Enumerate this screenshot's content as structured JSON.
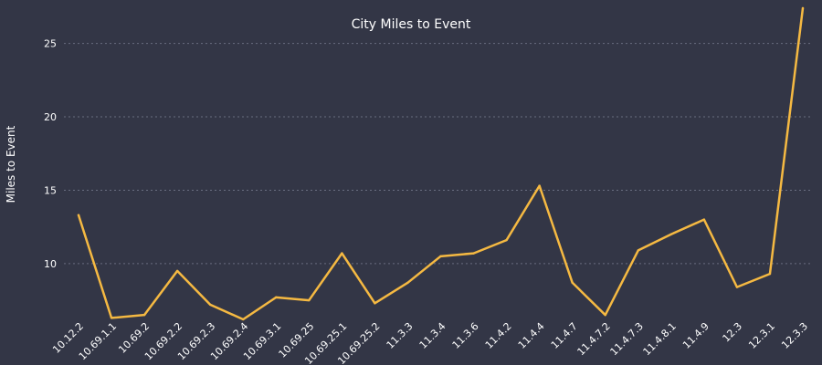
{
  "chart_data": {
    "type": "line",
    "title": "City Miles to Event",
    "xlabel": "",
    "ylabel": "Miles to Event",
    "categories": [
      "10.12.2",
      "10.69.1.1",
      "10.69.2",
      "10.69.2.2",
      "10.69.2.3",
      "10.69.2.4",
      "10.69.3.1",
      "10.69.25",
      "10.69.25.1",
      "10.69.25.2",
      "11.3.3",
      "11.3.4",
      "11.3.6",
      "11.4.2",
      "11.4.4",
      "11.4.7",
      "11.4.7.2",
      "11.4.7.3",
      "11.4.8.1",
      "11.4.9",
      "12.3",
      "12.3.1",
      "12.3.3"
    ],
    "series": [
      {
        "values": [
          13.3,
          6.3,
          6.5,
          9.5,
          7.2,
          6.2,
          7.7,
          7.5,
          10.7,
          7.3,
          8.7,
          10.5,
          10.7,
          11.6,
          15.3,
          8.7,
          6.5,
          10.9,
          12.0,
          13.0,
          8.4,
          9.3,
          27.4
        ]
      }
    ],
    "ylim": [
      6.2,
      27.4
    ],
    "yticks": [
      10,
      15,
      20,
      25
    ],
    "grid": true,
    "colors": {
      "background": "#333646",
      "line": "#f5b942",
      "text": "#ffffff",
      "grid": "#6a6e80"
    }
  }
}
